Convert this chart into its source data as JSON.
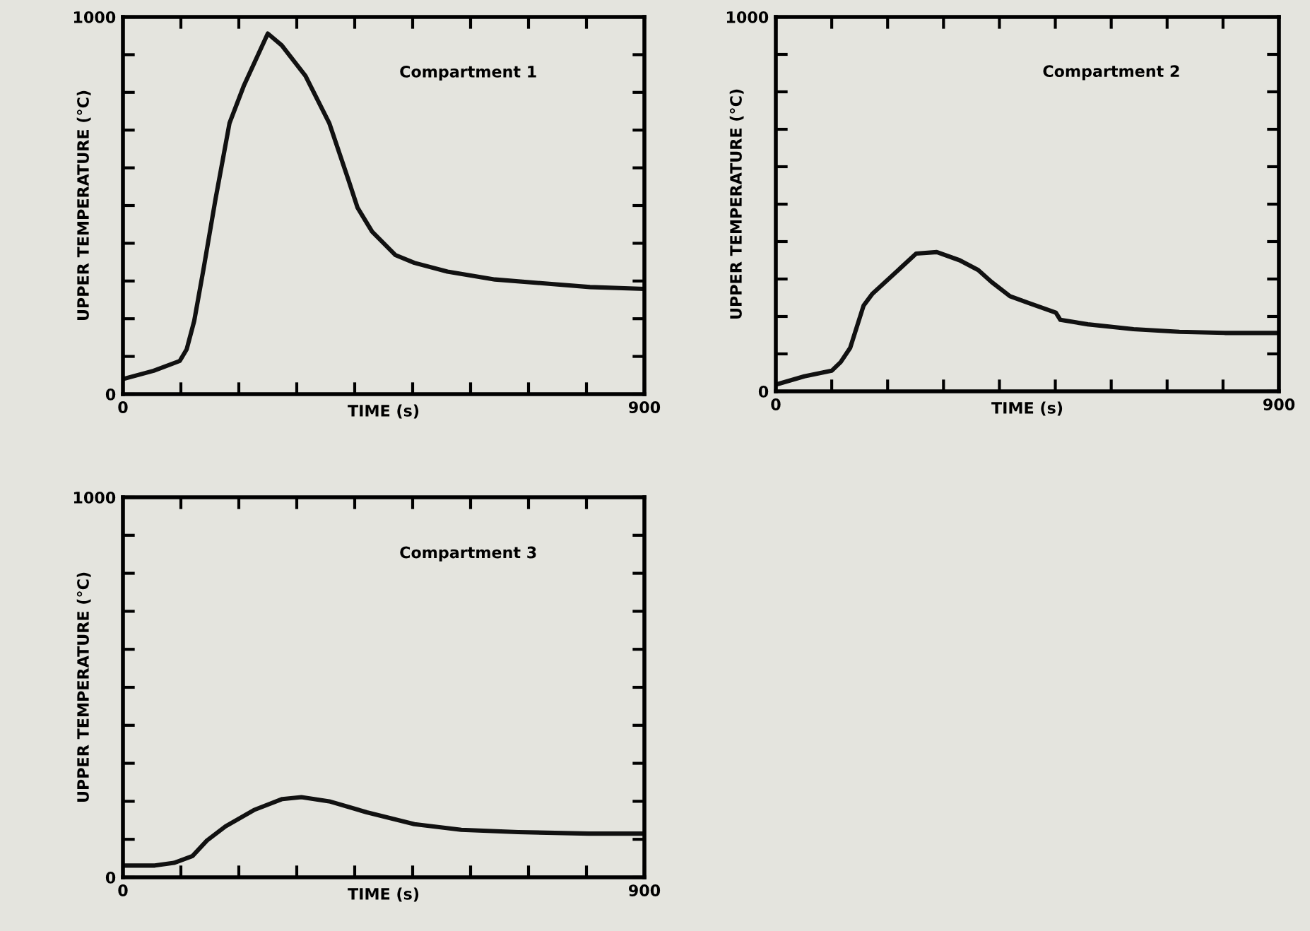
{
  "chart_data": [
    {
      "type": "line",
      "xlabel": "TIME (s)",
      "ylabel": "UPPER TEMPERATURE (°C)",
      "annotations": [
        "Compartment 1"
      ],
      "xlim": [
        0,
        900
      ],
      "ylim": [
        0,
        1000
      ],
      "xticks": [
        0,
        {
          "value": 100,
          "label": null
        },
        {
          "value": 200,
          "label": null
        },
        {
          "value": 300,
          "label": null
        },
        {
          "value": 400,
          "label": null
        },
        {
          "value": 500,
          "label": null
        },
        {
          "value": 600,
          "label": null
        },
        {
          "value": 700,
          "label": null
        },
        {
          "value": 800,
          "label": null
        },
        900
      ],
      "yticks": [
        0,
        {
          "value": 100,
          "label": null
        },
        {
          "value": 200,
          "label": null
        },
        {
          "value": 300,
          "label": null
        },
        {
          "value": 400,
          "label": null
        },
        {
          "value": 500,
          "label": null
        },
        {
          "value": 600,
          "label": null
        },
        {
          "value": 700,
          "label": null
        },
        {
          "value": 800,
          "label": null
        },
        {
          "value": 900,
          "label": null
        },
        1000
      ],
      "grid": false,
      "legend": false,
      "series": [
        {
          "color": "#111111",
          "x": [
            0,
            53,
            98,
            110,
            123,
            139,
            160,
            184,
            209,
            250,
            274,
            315,
            356,
            389,
            405,
            430,
            470,
            503,
            560,
            642,
            724,
            806,
            900
          ],
          "values": [
            40,
            62,
            88,
            119,
            194,
            331,
            519,
            719,
            819,
            956,
            925,
            844,
            719,
            569,
            494,
            431,
            369,
            348,
            325,
            304,
            294,
            284,
            279
          ]
        }
      ]
    },
    {
      "type": "line",
      "xlabel": "TIME (s)",
      "ylabel": "UPPER TEMPERATURE (°C)",
      "annotations": [
        "Compartment 2"
      ],
      "xlim": [
        0,
        900
      ],
      "ylim": [
        0,
        1000
      ],
      "xticks": [
        0,
        {
          "value": 100,
          "label": null
        },
        {
          "value": 200,
          "label": null
        },
        {
          "value": 300,
          "label": null
        },
        {
          "value": 400,
          "label": null
        },
        {
          "value": 500,
          "label": null
        },
        {
          "value": 600,
          "label": null
        },
        {
          "value": 700,
          "label": null
        },
        {
          "value": 800,
          "label": null
        },
        900
      ],
      "yticks": [
        0,
        {
          "value": 100,
          "label": null
        },
        {
          "value": 200,
          "label": null
        },
        {
          "value": 300,
          "label": null
        },
        {
          "value": 400,
          "label": null
        },
        {
          "value": 500,
          "label": null
        },
        {
          "value": 600,
          "label": null
        },
        {
          "value": 700,
          "label": null
        },
        {
          "value": 800,
          "label": null
        },
        {
          "value": 900,
          "label": null
        },
        1000
      ],
      "grid": false,
      "legend": false,
      "series": [
        {
          "color": "#111111",
          "x": [
            0,
            51,
            100,
            116,
            133,
            157,
            173,
            214,
            251,
            288,
            329,
            362,
            386,
            419,
            452,
            501,
            509,
            558,
            640,
            722,
            803,
            900
          ],
          "values": [
            18,
            40,
            55,
            78,
            116,
            229,
            261,
            317,
            368,
            372,
            350,
            324,
            292,
            254,
            236,
            210,
            191,
            179,
            166,
            159,
            156,
            156
          ]
        }
      ]
    },
    {
      "type": "line",
      "xlabel": "TIME (s)",
      "ylabel": "UPPER TEMPERATURE (°C)",
      "annotations": [
        "Compartment 3"
      ],
      "xlim": [
        0,
        900
      ],
      "ylim": [
        0,
        1000
      ],
      "xticks": [
        0,
        {
          "value": 100,
          "label": null
        },
        {
          "value": 200,
          "label": null
        },
        {
          "value": 300,
          "label": null
        },
        {
          "value": 400,
          "label": null
        },
        {
          "value": 500,
          "label": null
        },
        {
          "value": 600,
          "label": null
        },
        {
          "value": 700,
          "label": null
        },
        {
          "value": 800,
          "label": null
        },
        900
      ],
      "yticks": [
        0,
        {
          "value": 100,
          "label": null
        },
        {
          "value": 200,
          "label": null
        },
        {
          "value": 300,
          "label": null
        },
        {
          "value": 400,
          "label": null
        },
        {
          "value": 500,
          "label": null
        },
        {
          "value": 600,
          "label": null
        },
        {
          "value": 700,
          "label": null
        },
        {
          "value": 800,
          "label": null
        },
        {
          "value": 900,
          "label": null
        },
        1000
      ],
      "grid": false,
      "legend": false,
      "series": [
        {
          "color": "#111111",
          "x": [
            0,
            55,
            88,
            120,
            145,
            177,
            226,
            275,
            308,
            356,
            421,
            503,
            584,
            682,
            804,
            900
          ],
          "values": [
            31,
            31,
            38,
            56,
            97,
            134,
            177,
            206,
            211,
            200,
            171,
            140,
            125,
            119,
            115,
            115
          ]
        }
      ]
    }
  ]
}
